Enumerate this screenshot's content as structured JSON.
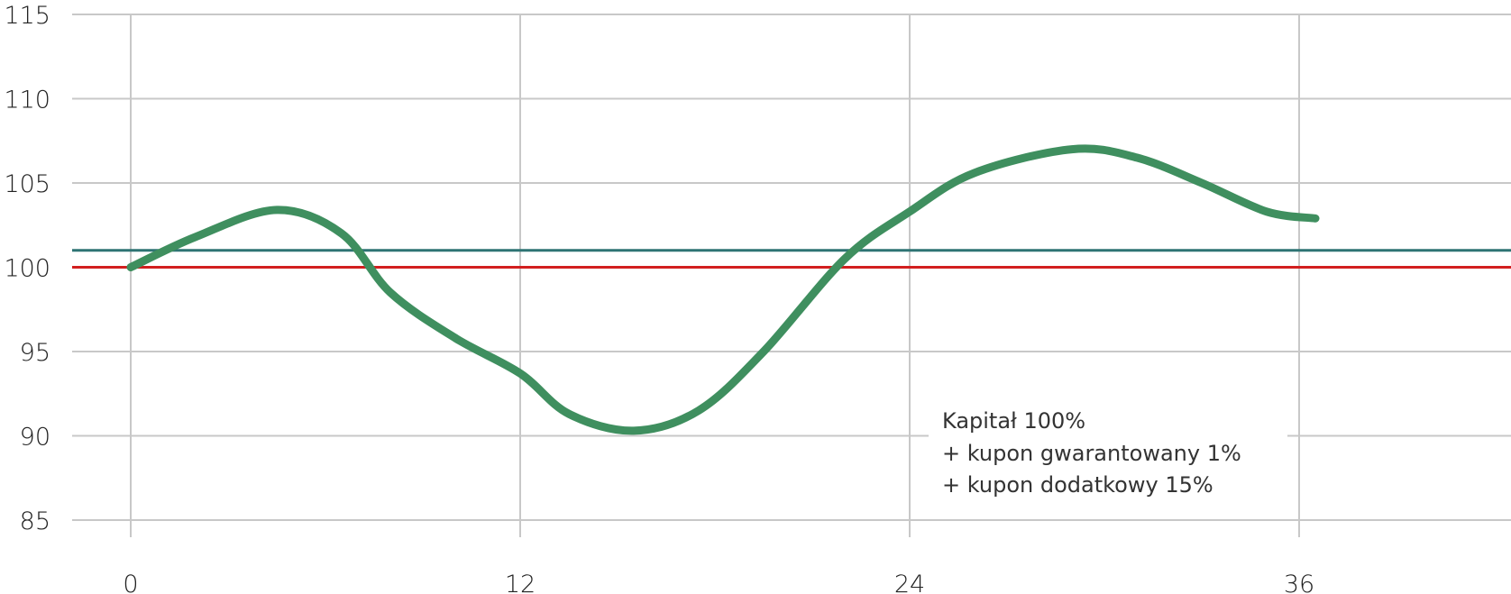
{
  "chart_data": {
    "type": "line",
    "title": "",
    "xlabel": "",
    "ylabel": "",
    "xlim": [
      0,
      42
    ],
    "ylim": [
      85,
      115
    ],
    "x_ticks": [
      "0",
      "12",
      "24",
      "36"
    ],
    "y_ticks": [
      "115",
      "110",
      "105",
      "100",
      "95",
      "90",
      "85"
    ],
    "grid": true,
    "series": [
      {
        "color": "#3f8f5f",
        "x": [
          0,
          2,
          4.5,
          6.5,
          8,
          10,
          12,
          13.5,
          15.5,
          17.5,
          19.5,
          22,
          24,
          26,
          29,
          31,
          33,
          35,
          36.5
        ],
        "values": [
          100,
          101.8,
          103.4,
          102.0,
          98.5,
          95.8,
          93.7,
          91.3,
          90.3,
          91.5,
          95.0,
          100.5,
          103.3,
          105.6,
          107.0,
          106.5,
          105.0,
          103.3,
          102.9
        ]
      }
    ],
    "reference_lines": [
      {
        "y": 101,
        "color": "#2e7474"
      },
      {
        "y": 100,
        "color": "#d21f1f"
      }
    ],
    "annotation": {
      "lines": [
        "Kapitał 100%",
        "+ kupon gwarantowany 1%",
        "+ kupon dodatkowy 15%"
      ]
    }
  }
}
